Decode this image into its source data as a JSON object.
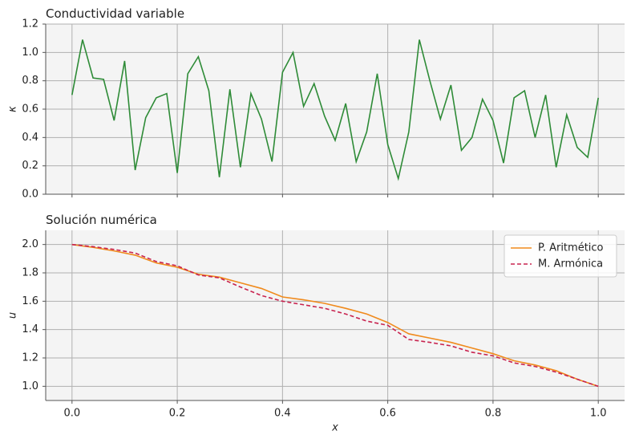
{
  "chart_data": [
    {
      "type": "line",
      "title": "Conductividad variable",
      "ylabel": "κ",
      "x": [
        0,
        0.02,
        0.04,
        0.06,
        0.08,
        0.1,
        0.12,
        0.14,
        0.16,
        0.18,
        0.2,
        0.22,
        0.24,
        0.26,
        0.28,
        0.3,
        0.32,
        0.34,
        0.36,
        0.38,
        0.4,
        0.42,
        0.44,
        0.46,
        0.48,
        0.5,
        0.52,
        0.54,
        0.56,
        0.58,
        0.6,
        0.62,
        0.64,
        0.66,
        0.68,
        0.7,
        0.72,
        0.74,
        0.76,
        0.78,
        0.8,
        0.82,
        0.84,
        0.86,
        0.88,
        0.9,
        0.92,
        0.94,
        0.96,
        0.98,
        1.0
      ],
      "series": [
        {
          "color": "#2e8b37",
          "dash": false,
          "values": [
            0.7,
            1.09,
            0.82,
            0.81,
            0.52,
            0.94,
            0.17,
            0.54,
            0.68,
            0.71,
            0.15,
            0.85,
            0.97,
            0.73,
            0.12,
            0.74,
            0.19,
            0.71,
            0.53,
            0.23,
            0.86,
            1.0,
            0.62,
            0.78,
            0.55,
            0.38,
            0.64,
            0.23,
            0.44,
            0.85,
            0.35,
            0.11,
            0.44,
            1.09,
            0.8,
            0.53,
            0.77,
            0.31,
            0.4,
            0.67,
            0.52,
            0.22,
            0.68,
            0.73,
            0.4,
            0.7,
            0.19,
            0.56,
            0.33,
            0.26,
            0.68
          ]
        }
      ],
      "xlim": [
        -0.05,
        1.05
      ],
      "xticks": [
        {
          "value": 0,
          "label": "0.0"
        },
        0.2,
        0.4,
        0.6,
        0.8,
        {
          "value": 1,
          "label": "1.0"
        }
      ],
      "xtick_labels": false,
      "ylim": [
        0,
        1.2
      ],
      "yticks": [
        {
          "value": 0,
          "label": "0.0"
        },
        0.2,
        0.4,
        0.6,
        0.8,
        {
          "value": 1,
          "label": "1.0"
        },
        1.2
      ],
      "grid": true
    },
    {
      "type": "line",
      "title": "Solución numérica",
      "ylabel": "u",
      "xlabel": "x",
      "x": [
        0,
        0.04,
        0.08,
        0.12,
        0.16,
        0.2,
        0.24,
        0.28,
        0.32,
        0.36,
        0.4,
        0.44,
        0.48,
        0.52,
        0.56,
        0.6,
        0.64,
        0.68,
        0.72,
        0.76,
        0.8,
        0.84,
        0.88,
        0.92,
        0.96,
        1.0
      ],
      "series": [
        {
          "name": "P. Aritmético",
          "color": "#f08a1c",
          "dash": false,
          "values": [
            2.0,
            1.98,
            1.955,
            1.925,
            1.87,
            1.84,
            1.79,
            1.77,
            1.73,
            1.69,
            1.63,
            1.61,
            1.585,
            1.55,
            1.51,
            1.45,
            1.37,
            1.34,
            1.31,
            1.27,
            1.23,
            1.18,
            1.15,
            1.11,
            1.05,
            1.0
          ]
        },
        {
          "name": "M. Armónica",
          "color": "#c8234f",
          "dash": true,
          "values": [
            2.0,
            1.985,
            1.965,
            1.94,
            1.88,
            1.85,
            1.785,
            1.765,
            1.7,
            1.64,
            1.6,
            1.575,
            1.55,
            1.51,
            1.46,
            1.43,
            1.33,
            1.31,
            1.285,
            1.24,
            1.215,
            1.165,
            1.14,
            1.1,
            1.05,
            1.0
          ]
        }
      ],
      "xlim": [
        -0.05,
        1.05
      ],
      "xticks": [
        {
          "value": 0,
          "label": "0.0"
        },
        0.2,
        0.4,
        0.6,
        0.8,
        {
          "value": 1,
          "label": "1.0"
        }
      ],
      "xtick_labels": true,
      "ylim": [
        0.9,
        2.1
      ],
      "yticks": [
        {
          "value": 1,
          "label": "1.0"
        },
        1.2,
        1.4,
        1.6,
        1.8,
        {
          "value": 2,
          "label": "2.0"
        }
      ],
      "grid": true,
      "legend": "upper-right"
    }
  ]
}
